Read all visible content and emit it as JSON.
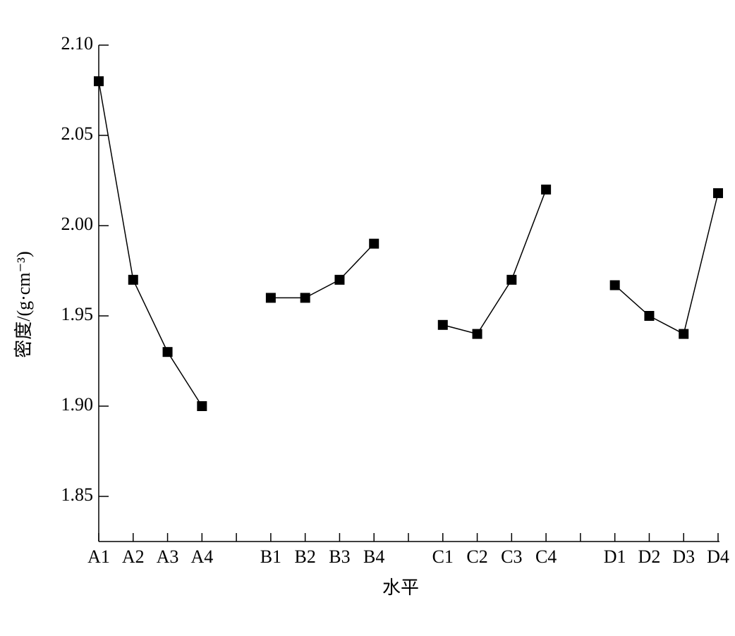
{
  "chart_data": {
    "type": "line",
    "xlabel": "水平",
    "ylabel": "密度/(g·cm⁻³)",
    "categories": [
      "A1",
      "A2",
      "A3",
      "A4",
      null,
      "B1",
      "B2",
      "B3",
      "B4",
      null,
      "C1",
      "C2",
      "C3",
      "C4",
      null,
      "D1",
      "D2",
      "D3",
      "D4"
    ],
    "series": [
      {
        "color": "#000000",
        "values": [
          2.08,
          1.97,
          1.93,
          1.9,
          null,
          1.96,
          1.96,
          1.97,
          1.99,
          null,
          1.945,
          1.94,
          1.97,
          2.02,
          null,
          1.967,
          1.95,
          1.94,
          2.018
        ]
      }
    ],
    "ylim": [
      1.825,
      2.1
    ],
    "yticks": [
      {
        "value": 1.85,
        "label": "1.85"
      },
      {
        "value": 1.9,
        "label": "1.90"
      },
      {
        "value": 1.95,
        "label": "1.95"
      },
      {
        "value": 2.0,
        "label": "2.00"
      },
      {
        "value": 2.05,
        "label": "2.05"
      },
      {
        "value": 2.1,
        "label": "2.10"
      }
    ],
    "grid": false
  }
}
